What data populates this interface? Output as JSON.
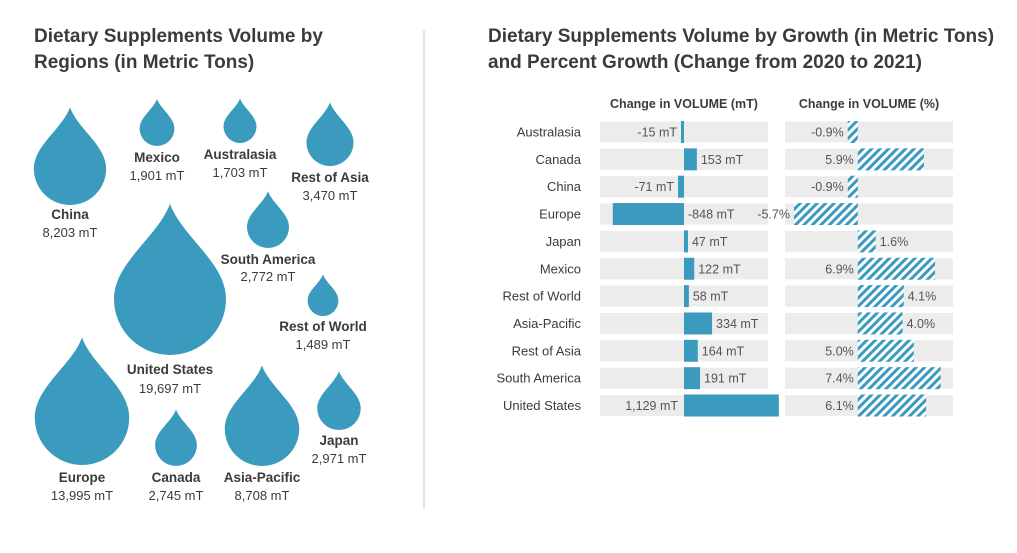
{
  "chart_data": [
    {
      "type": "bubble",
      "title": "Dietary Supplements Volume by Regions (in Metric Tons)",
      "unit": "mT",
      "regions": [
        {
          "name": "China",
          "value": 8203,
          "label": "8,203 mT"
        },
        {
          "name": "Mexico",
          "value": 1901,
          "label": "1,901 mT"
        },
        {
          "name": "Australasia",
          "value": 1703,
          "label": "1,703 mT"
        },
        {
          "name": "Rest of Asia",
          "value": 3470,
          "label": "3,470 mT"
        },
        {
          "name": "South America",
          "value": 2772,
          "label": "2,772 mT"
        },
        {
          "name": "United States",
          "value": 19697,
          "label": "19,697 mT"
        },
        {
          "name": "Rest of World",
          "value": 1489,
          "label": "1,489 mT"
        },
        {
          "name": "Europe",
          "value": 13995,
          "label": "13,995 mT"
        },
        {
          "name": "Canada",
          "value": 2745,
          "label": "2,745 mT"
        },
        {
          "name": "Asia-Pacific",
          "value": 8708,
          "label": "8,708 mT"
        },
        {
          "name": "Japan",
          "value": 2971,
          "label": "2,971 mT"
        }
      ]
    },
    {
      "type": "bar",
      "orientation": "horizontal",
      "title": "Dietary Supplements Volume by Growth (in Metric Tons) and Percent Growth (Change from 2020 to 2021)",
      "categories": [
        "Australasia",
        "Canada",
        "China",
        "Europe",
        "Japan",
        "Mexico",
        "Rest of World",
        "Asia-Pacific",
        "Rest of Asia",
        "South America",
        "United States"
      ],
      "series": [
        {
          "name": "Change in VOLUME (mT)",
          "values": [
            -15,
            153,
            -71,
            -848,
            47,
            122,
            58,
            334,
            164,
            191,
            1129
          ],
          "labels": [
            "-15 mT",
            "153 mT",
            "-71 mT",
            "-848 mT",
            "47 mT",
            "122 mT",
            "58 mT",
            "334 mT",
            "164 mT",
            "191 mT",
            "1,129 mT"
          ],
          "range": [
            -1000,
            1000
          ]
        },
        {
          "name": "Change in VOLUME (%)",
          "values": [
            -0.9,
            5.9,
            -0.9,
            -5.7,
            1.6,
            6.9,
            4.1,
            4.0,
            5.0,
            7.4,
            6.1
          ],
          "labels": [
            "-0.9%",
            "5.9%",
            "-0.9%",
            "-5.7%",
            "1.6%",
            "6.9%",
            "4.1%",
            "4.0%",
            "5.0%",
            "7.4%",
            "6.1%"
          ],
          "range": [
            -6.5,
            8.5
          ]
        }
      ]
    }
  ]
}
